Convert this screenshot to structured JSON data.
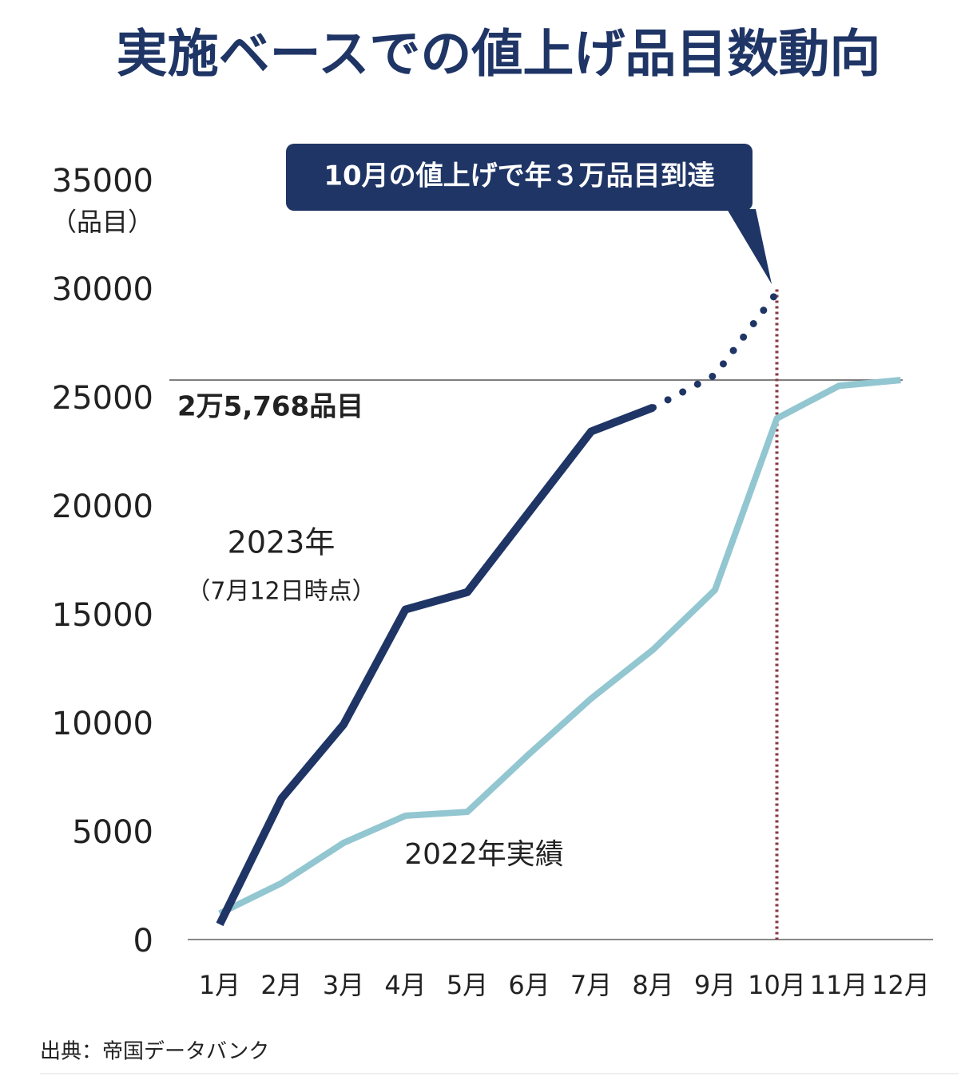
{
  "chart_data": {
    "type": "line",
    "title": "実施ベースでの値上げ品目数動向",
    "y_unit": "（品目）",
    "categories": [
      "1月",
      "2月",
      "3月",
      "4月",
      "5月",
      "6月",
      "7月",
      "8月",
      "9月",
      "10月",
      "11月",
      "12月"
    ],
    "series": [
      {
        "name": "2023年",
        "note": "（7月12日時点）",
        "color": "#1f3566",
        "values": [
          700,
          6500,
          9900,
          15200,
          16000,
          19700,
          23400,
          24500,
          null,
          null,
          null,
          null
        ]
      },
      {
        "name": "2022年実績",
        "color": "#92c6d0",
        "values": [
          1200,
          2600,
          4450,
          5700,
          5880,
          8550,
          11100,
          13350,
          16100,
          24000,
          25500,
          25768
        ]
      }
    ],
    "projection": {
      "color": "#1f3566",
      "values": [
        null,
        null,
        null,
        null,
        null,
        null,
        null,
        24500,
        26000,
        29800,
        null,
        null
      ]
    },
    "reference_line": {
      "value": 25768,
      "label": "2万5,768品目"
    },
    "marker_category": "10月",
    "marker_color": "#8b3a44",
    "annotation": "10月の値上げで年３万品目到達",
    "ylim": [
      0,
      35000
    ],
    "yticks": [
      0,
      5000,
      10000,
      15000,
      20000,
      25000,
      30000,
      35000
    ],
    "source": "出典：帝国データバンク"
  }
}
